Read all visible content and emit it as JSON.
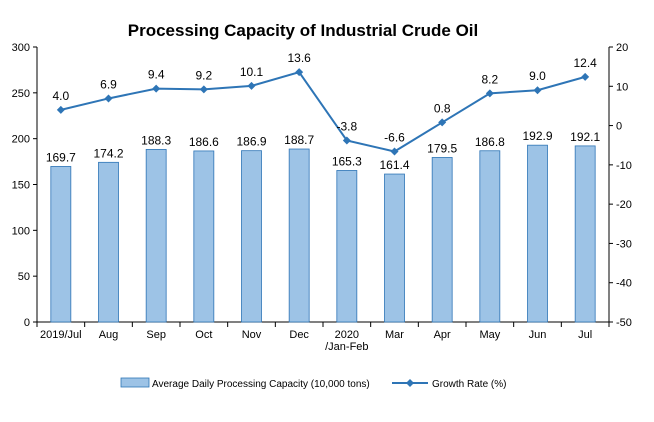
{
  "chart_data": {
    "type": "bar+line",
    "title": "Processing Capacity of Industrial Crude Oil",
    "categories": [
      [
        "2019/Jul"
      ],
      [
        "Aug"
      ],
      [
        "Sep"
      ],
      [
        "Oct"
      ],
      [
        "Nov"
      ],
      [
        "Dec"
      ],
      [
        "2020",
        "/Jan-Feb"
      ],
      [
        "Mar"
      ],
      [
        "Apr"
      ],
      [
        "May"
      ],
      [
        "Jun"
      ],
      [
        "Jul"
      ]
    ],
    "series": [
      {
        "name": "Average Daily Processing Capacity (10,000 tons)",
        "type": "bar",
        "axis": "left",
        "values": [
          169.7,
          174.2,
          188.3,
          186.6,
          186.9,
          188.7,
          165.3,
          161.4,
          179.5,
          186.8,
          192.9,
          192.1
        ],
        "labels": [
          "169.7",
          "174.2",
          "188.3",
          "186.6",
          "186.9",
          "188.7",
          "165.3",
          "161.4",
          "179.5",
          "186.8",
          "192.9",
          "192.1"
        ]
      },
      {
        "name": "Growth Rate (%)",
        "type": "line",
        "axis": "right",
        "values": [
          4.0,
          6.9,
          9.4,
          9.2,
          10.1,
          13.6,
          -3.8,
          -6.6,
          0.8,
          8.2,
          9.0,
          12.4
        ],
        "labels": [
          "4.0",
          "6.9",
          "9.4",
          "9.2",
          "10.1",
          "13.6",
          "-3.8",
          "-6.6",
          "0.8",
          "8.2",
          "9.0",
          "12.4"
        ]
      }
    ],
    "y_left": {
      "min": 0,
      "max": 300,
      "ticks": [
        "0",
        "50",
        "100",
        "150",
        "200",
        "250",
        "300"
      ]
    },
    "y_right": {
      "min": -50,
      "max": 20,
      "ticks": [
        "-50",
        "-40",
        "-30",
        "-20",
        "-10",
        "0",
        "10",
        "20"
      ]
    },
    "grid": false,
    "legend_position": "bottom",
    "colors": {
      "bar_fill": "#9dc3e6",
      "bar_stroke": "#2e75b6",
      "line": "#2e75b6",
      "axis": "#000000"
    }
  }
}
